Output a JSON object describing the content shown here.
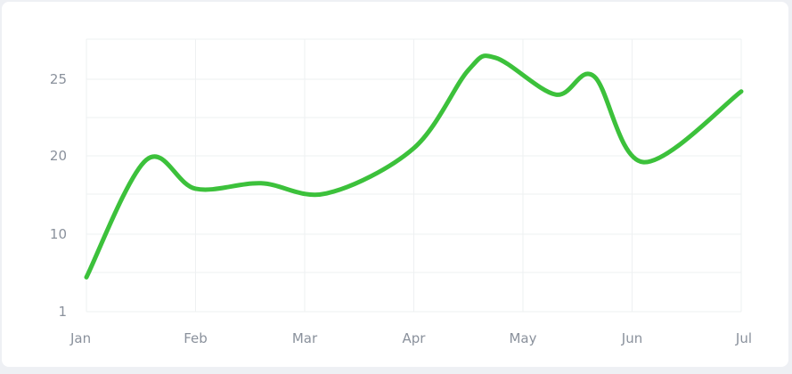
{
  "chart_data": {
    "type": "line",
    "title": "",
    "xlabel": "",
    "ylabel": "",
    "x_ticks": [
      "Jan",
      "Feb",
      "Mar",
      "Apr",
      "May",
      "Jun",
      "Jul"
    ],
    "y_ticks": [
      "1",
      "10",
      "20",
      "25"
    ],
    "y_tick_values": [
      1,
      10,
      20,
      25
    ],
    "ylim": [
      1,
      28
    ],
    "grid": true,
    "legend": "none",
    "series": [
      {
        "color": "#3cc13b",
        "x": [
          0,
          0.55,
          1.0,
          1.6,
          2.2,
          3.0,
          3.5,
          3.75,
          4.3,
          4.65,
          5.1,
          6.0
        ],
        "values": [
          5,
          19.5,
          15.8,
          16.5,
          15.2,
          20.5,
          25.6,
          26.4,
          24.0,
          25.2,
          19.2,
          24.2
        ]
      }
    ]
  }
}
